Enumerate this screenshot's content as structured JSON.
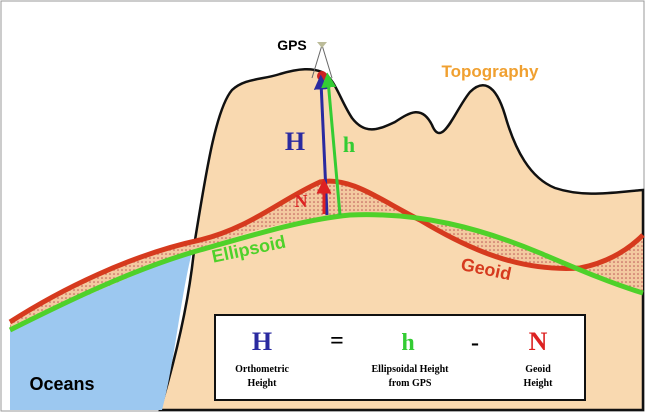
{
  "labels": {
    "gps": "GPS",
    "topography": "Topography",
    "H": "H",
    "h": "h",
    "N": "N",
    "ellipsoid": "Ellipsoid",
    "geoid": "Geoid",
    "oceans": "Oceans"
  },
  "equation": {
    "H": "H",
    "equals": "=",
    "h": "h",
    "minus": "-",
    "N": "N",
    "orthometric": [
      "Orthometric",
      "Height"
    ],
    "ellipsoidal": [
      "Ellipsoidal Height",
      "from GPS"
    ],
    "geoid": [
      "Geoid",
      "Height"
    ]
  }
}
